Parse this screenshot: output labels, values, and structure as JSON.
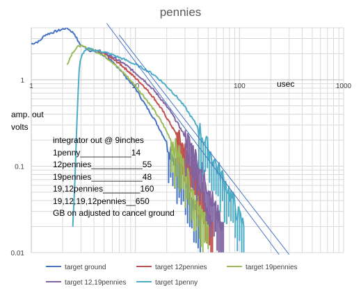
{
  "chart_data": {
    "type": "line",
    "title": "pennies",
    "xlabel": "usec",
    "ylabel": [
      "amp. out",
      "volts"
    ],
    "x_scale": "log",
    "y_scale": "log",
    "xlim": [
      1,
      1000
    ],
    "ylim": [
      0.01,
      4
    ],
    "x_tick_labels": [
      "1",
      "10",
      "100",
      "1000"
    ],
    "y_tick_labels": [
      "1",
      "0.1",
      "0.01"
    ],
    "grid": true,
    "legend_position": "bottom",
    "annotations": [
      "integrator out @ 9inches",
      "1penny___________14",
      "12pennies___________55",
      "19pennies___________48",
      "19,12pennies________160",
      "19,12,19,12pennies__650",
      "GB on adjusted to cancel ground"
    ],
    "series": [
      {
        "name": "target ground",
        "color": "#4472c4",
        "x": [
          1,
          1.2,
          1.35,
          2.2,
          2.6,
          2.9,
          3.2,
          3.6,
          4.2,
          5,
          6,
          7,
          8,
          10,
          12,
          15,
          18,
          22,
          26,
          30,
          35,
          38,
          42
        ],
        "y": [
          2.6,
          2.8,
          3.3,
          4,
          3.4,
          2.6,
          2.4,
          2.2,
          2.1,
          1.9,
          1.6,
          1.35,
          1.1,
          0.8,
          0.55,
          0.36,
          0.24,
          0.15,
          0.1,
          0.07,
          0.05,
          0.03,
          0.02
        ],
        "noise_from_x": 20
      },
      {
        "name": "target 12pennies",
        "color": "#c0504d",
        "x": [
          4,
          5,
          6,
          7,
          8,
          10,
          12,
          15,
          18,
          22,
          26,
          30,
          35,
          40,
          45,
          50,
          55
        ],
        "y": [
          2.2,
          2,
          1.75,
          1.55,
          1.35,
          1.05,
          0.85,
          0.62,
          0.45,
          0.3,
          0.21,
          0.15,
          0.1,
          0.07,
          0.045,
          0.03,
          0.02
        ],
        "noise_from_x": 25
      },
      {
        "name": "target 19pennies",
        "color": "#9bbb59",
        "x": [
          2.2,
          2.5,
          2.9,
          3.5,
          4,
          5,
          6,
          8,
          10,
          12,
          15,
          18,
          22,
          26,
          30,
          35,
          40,
          45,
          50
        ],
        "y": [
          1.5,
          2.1,
          2.5,
          2.3,
          2.2,
          1.9,
          1.6,
          1.15,
          0.85,
          0.65,
          0.45,
          0.32,
          0.2,
          0.14,
          0.09,
          0.06,
          0.04,
          0.028,
          0.02
        ],
        "noise_from_x": 22
      },
      {
        "name": "target 12,19pennies",
        "color": "#8064a2",
        "x": [
          4.5,
          5,
          6,
          8,
          10,
          12,
          15,
          18,
          22,
          26,
          30,
          35,
          40,
          45,
          50,
          55,
          60,
          70
        ],
        "y": [
          2.2,
          2.05,
          1.85,
          1.5,
          1.2,
          1,
          0.76,
          0.58,
          0.42,
          0.3,
          0.22,
          0.16,
          0.11,
          0.08,
          0.055,
          0.04,
          0.03,
          0.02
        ],
        "noise_from_x": 30
      },
      {
        "name": "target 1penny",
        "color": "#4bacc6",
        "x": [
          2.5,
          2.6,
          2.7,
          2.8,
          2.9,
          3.1,
          3.3,
          3.5,
          4,
          5,
          6,
          8,
          10,
          12,
          15,
          18,
          22,
          26,
          30,
          35,
          40,
          45,
          50,
          60,
          70,
          80,
          90,
          100,
          110
        ],
        "y": [
          0.02,
          0.05,
          0.2,
          0.6,
          1.5,
          2,
          2.2,
          2.3,
          2.2,
          2.1,
          1.95,
          1.7,
          1.5,
          1.35,
          1.15,
          0.95,
          0.75,
          0.6,
          0.48,
          0.36,
          0.28,
          0.21,
          0.16,
          0.1,
          0.07,
          0.05,
          0.035,
          0.025,
          0.02
        ],
        "noise_from_x": 40
      }
    ],
    "reference_lines": [
      {
        "color": "#4472c4",
        "from": [
          5.3,
          4.5
        ],
        "to": [
          240,
          0.0095
        ]
      },
      {
        "color": "#4472c4",
        "from": [
          7,
          3.3
        ],
        "to": [
          300,
          0.0095
        ]
      }
    ]
  }
}
